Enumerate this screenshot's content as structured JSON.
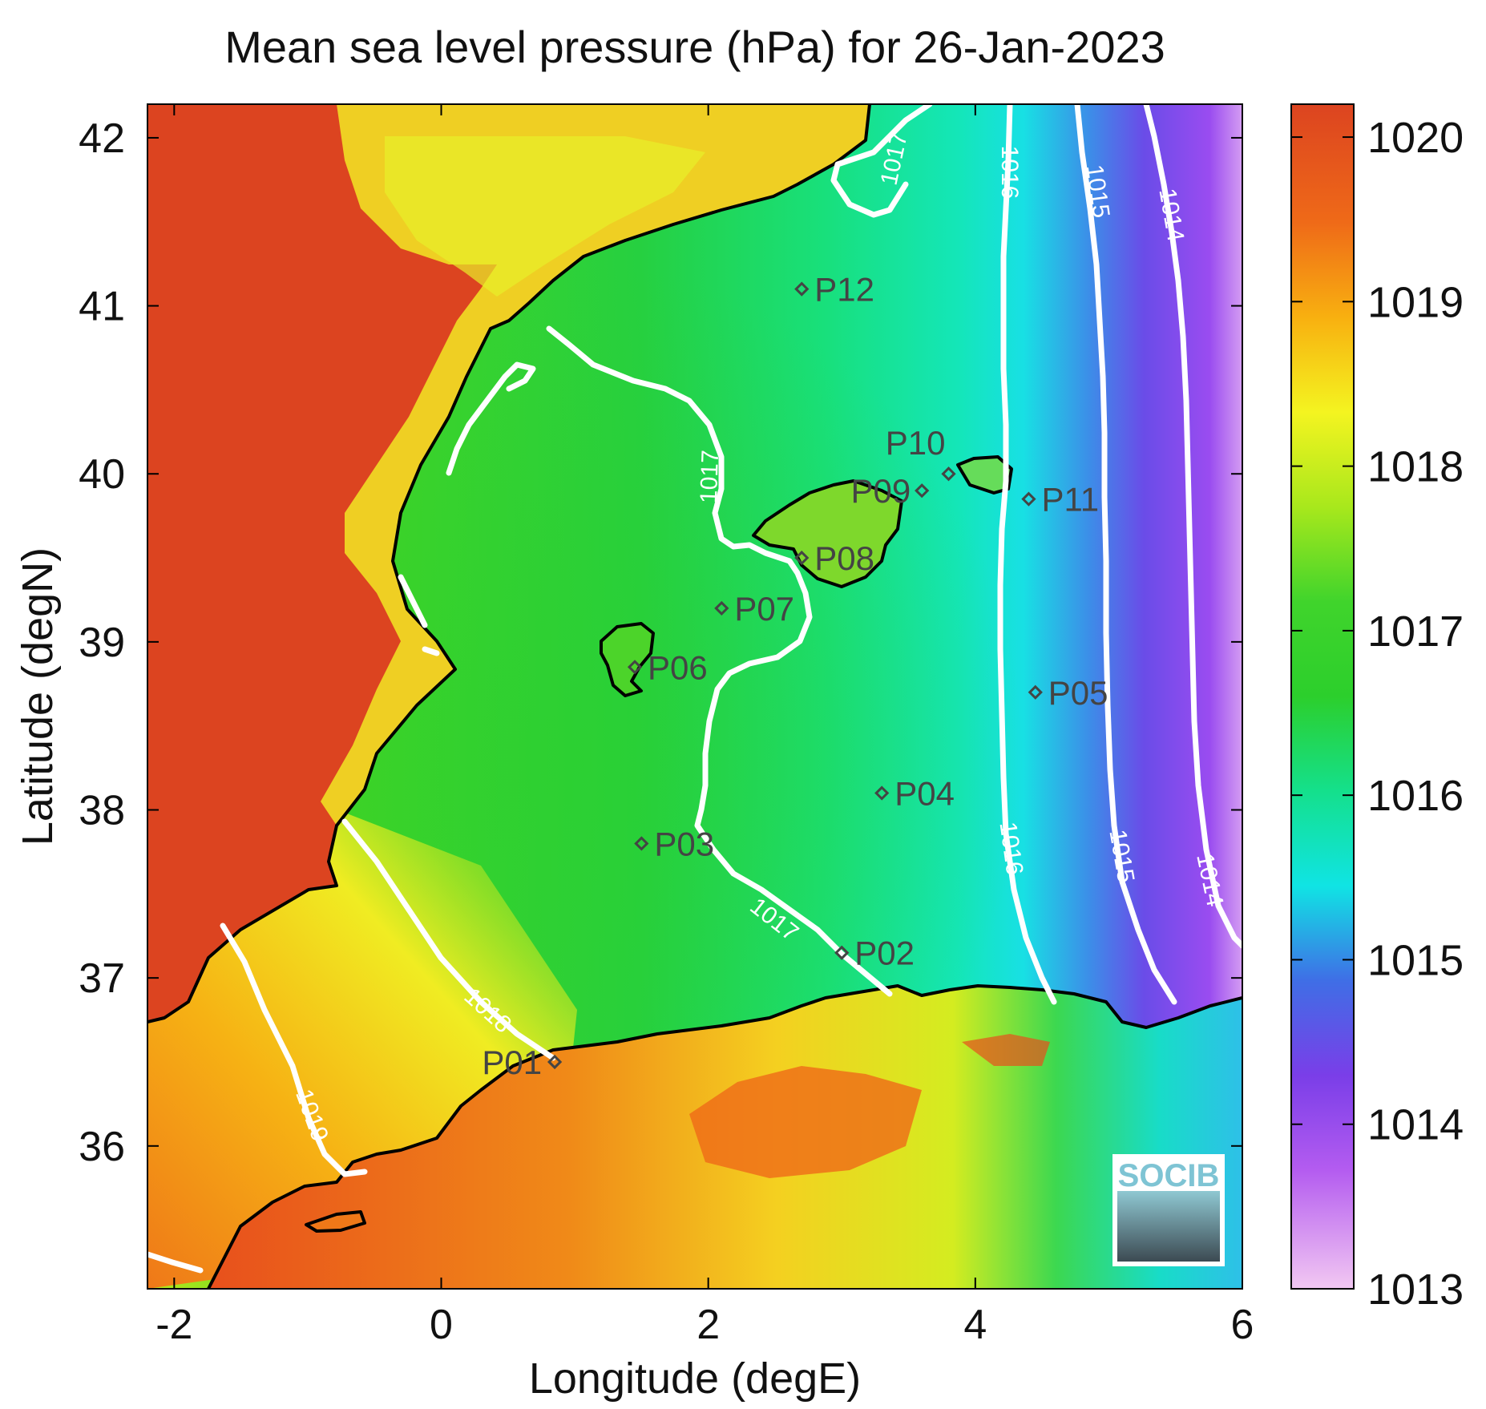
{
  "title": "Mean sea level pressure (hPa) for 26-Jan-2023",
  "x_axis": {
    "label": "Longitude (degE)",
    "range": [
      -2.2,
      6.0
    ],
    "ticks": [
      -2,
      0,
      2,
      4,
      6
    ],
    "tick_labels": [
      "-2",
      "0",
      "2",
      "4",
      "6"
    ]
  },
  "y_axis": {
    "label": "Latitude (degN)",
    "range": [
      35.15,
      42.2
    ],
    "ticks": [
      36,
      37,
      38,
      39,
      40,
      41,
      42
    ],
    "tick_labels": [
      "36",
      "37",
      "38",
      "39",
      "40",
      "41",
      "42"
    ]
  },
  "colorbar": {
    "range": [
      1013,
      1020.2
    ],
    "ticks": [
      1013,
      1014,
      1015,
      1016,
      1017,
      1018,
      1019,
      1020
    ],
    "tick_labels": [
      "1013",
      "1014",
      "1015",
      "1016",
      "1017",
      "1018",
      "1019",
      "1020"
    ],
    "colors": [
      "#f2c8f2",
      "#b45cf0",
      "#7a3ee8",
      "#3f6ee6",
      "#10e4e4",
      "#14e08c",
      "#2ccf2c",
      "#a8e81c",
      "#f4f420",
      "#f8b010",
      "#ef6a18",
      "#dc4420"
    ]
  },
  "stations": [
    {
      "id": "P01",
      "lon": 0.85,
      "lat": 36.5
    },
    {
      "id": "P02",
      "lon": 3.0,
      "lat": 37.15
    },
    {
      "id": "P03",
      "lon": 1.5,
      "lat": 37.8
    },
    {
      "id": "P04",
      "lon": 3.3,
      "lat": 38.1
    },
    {
      "id": "P05",
      "lon": 4.45,
      "lat": 38.7
    },
    {
      "id": "P06",
      "lon": 1.45,
      "lat": 38.85
    },
    {
      "id": "P07",
      "lon": 2.1,
      "lat": 39.2
    },
    {
      "id": "P08",
      "lon": 2.7,
      "lat": 39.5
    },
    {
      "id": "P09",
      "lon": 3.6,
      "lat": 39.9
    },
    {
      "id": "P10",
      "lon": 3.8,
      "lat": 40.0
    },
    {
      "id": "P11",
      "lon": 4.4,
      "lat": 39.85
    },
    {
      "id": "P12",
      "lon": 2.7,
      "lat": 41.1
    }
  ],
  "contour_labels": [
    "1019",
    "1018",
    "1017",
    "1017",
    "1017",
    "1016",
    "1016",
    "1015",
    "1015",
    "1014",
    "1014"
  ],
  "logo": {
    "text": "SOCIB"
  },
  "colors": {
    "land": "#dc4420",
    "sea_center": "#2ccf2c",
    "contour": "#ffffff",
    "coastline": "#000000",
    "station": "#444444"
  },
  "chart_data": {
    "type": "heatmap",
    "title": "Mean sea level pressure (hPa) for 26-Jan-2023",
    "xlabel": "Longitude (degE)",
    "ylabel": "Latitude (degN)",
    "xlim": [
      -2.2,
      6.0
    ],
    "ylim": [
      35.15,
      42.2
    ],
    "colorbar_range_hPa": [
      1013,
      1020.2
    ],
    "contour_levels_hPa": [
      1014,
      1015,
      1016,
      1017,
      1018,
      1019
    ]
  }
}
